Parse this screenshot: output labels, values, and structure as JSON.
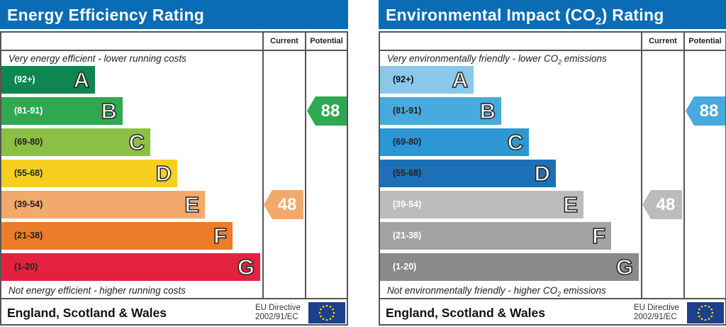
{
  "columns": {
    "current": "Current",
    "potential": "Potential"
  },
  "footer": {
    "region": "England, Scotland & Wales",
    "directive_line1": "EU Directive",
    "directive_line2": "2002/91/EC"
  },
  "panels": [
    {
      "id": "energy",
      "title": {
        "pre": "Energy Efficiency Rating",
        "sub": "",
        "post": ""
      },
      "top_text": {
        "pre": "Very energy efficient - lower running costs",
        "sub": "",
        "post": ""
      },
      "bottom_text": {
        "pre": "Not energy efficient - higher running costs",
        "sub": "",
        "post": ""
      },
      "bands": [
        {
          "letter": "A",
          "range": "(92+)",
          "color": "#0f8550",
          "text_color": "#ffffff"
        },
        {
          "letter": "B",
          "range": "(81-91)",
          "color": "#2ea851",
          "text_color": "#ffffff"
        },
        {
          "letter": "C",
          "range": "(69-80)",
          "color": "#8cbf45",
          "text_color": "#222222"
        },
        {
          "letter": "D",
          "range": "(55-68)",
          "color": "#f6cf1e",
          "text_color": "#222222"
        },
        {
          "letter": "E",
          "range": "(39-54)",
          "color": "#f2a96c",
          "text_color": "#222222"
        },
        {
          "letter": "F",
          "range": "(21-38)",
          "color": "#ec7c2a",
          "text_color": "#222222"
        },
        {
          "letter": "G",
          "range": "(1-20)",
          "color": "#e3223f",
          "text_color": "#222222"
        }
      ],
      "current": {
        "value": "48",
        "band": "E",
        "color": "#f2a96c"
      },
      "potential": {
        "value": "88",
        "band": "B",
        "color": "#2ea851"
      }
    },
    {
      "id": "environmental",
      "title": {
        "pre": "Environmental Impact (CO",
        "sub": "2",
        "post": ") Rating"
      },
      "top_text": {
        "pre": "Very environmentally friendly - lower CO",
        "sub": "2",
        "post": " emissions"
      },
      "bottom_text": {
        "pre": "Not environmentally friendly - higher CO",
        "sub": "2",
        "post": " emissions"
      },
      "bands": [
        {
          "letter": "A",
          "range": "(92+)",
          "color": "#8ac7ea",
          "text_color": "#111111"
        },
        {
          "letter": "B",
          "range": "(81-91)",
          "color": "#47a9dd",
          "text_color": "#222222"
        },
        {
          "letter": "C",
          "range": "(69-80)",
          "color": "#2b97d3",
          "text_color": "#222222"
        },
        {
          "letter": "D",
          "range": "(55-68)",
          "color": "#1c70b6",
          "text_color": "#222222"
        },
        {
          "letter": "E",
          "range": "(39-54)",
          "color": "#bcbcbc",
          "text_color": "#ffffff"
        },
        {
          "letter": "F",
          "range": "(21-38)",
          "color": "#a3a3a3",
          "text_color": "#ffffff"
        },
        {
          "letter": "G",
          "range": "(1-20)",
          "color": "#8a8a8a",
          "text_color": "#ffffff"
        }
      ],
      "current": {
        "value": "48",
        "band": "E",
        "color": "#bcbcbc"
      },
      "potential": {
        "value": "88",
        "band": "B",
        "color": "#47a9dd"
      }
    }
  ]
}
